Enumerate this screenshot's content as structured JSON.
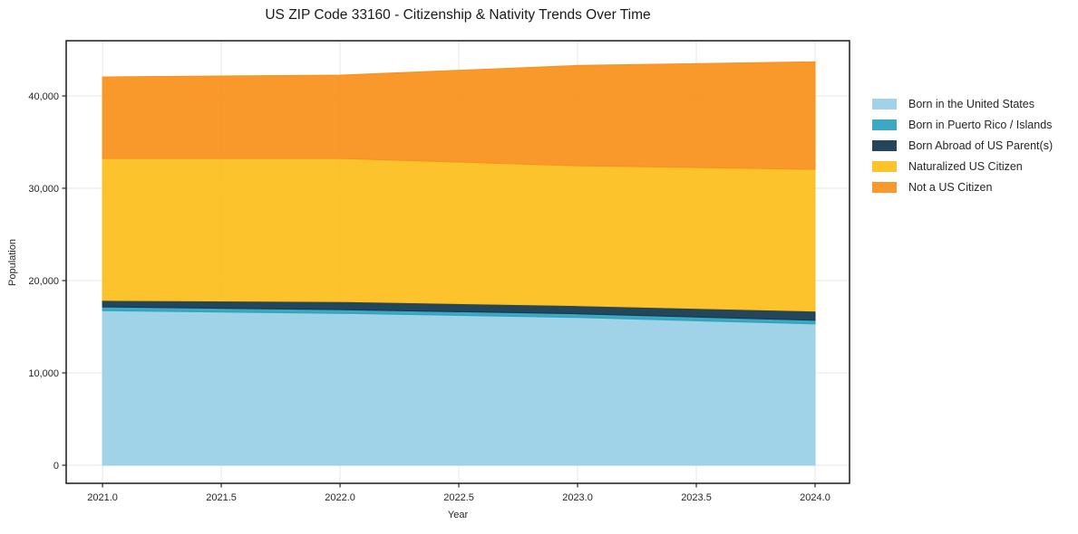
{
  "chart_data": {
    "type": "area",
    "stacked": true,
    "title": "US ZIP Code 33160 - Citizenship & Nativity Trends Over Time",
    "xlabel": "Year",
    "ylabel": "Population",
    "grid": true,
    "legend_position": "right",
    "x": [
      2021.0,
      2022.0,
      2023.0,
      2024.0
    ],
    "series": [
      {
        "name": "Born in the United States",
        "color": "#99CFE6",
        "values": [
          16750,
          16450,
          16000,
          15300
        ]
      },
      {
        "name": "Born in Puerto Rico / Islands",
        "color": "#2EA1BD",
        "values": [
          400,
          400,
          400,
          400
        ]
      },
      {
        "name": "Born Abroad of US Parent(s)",
        "color": "#12384D",
        "values": [
          700,
          880,
          880,
          1000
        ]
      },
      {
        "name": "Naturalized US Citizen",
        "color": "#FDBE1D",
        "values": [
          15380,
          15500,
          15160,
          15350
        ]
      },
      {
        "name": "Not a US Citizen",
        "color": "#F9911B",
        "values": [
          8830,
          9020,
          10860,
          11650
        ]
      }
    ],
    "stack_totals": [
      42060,
      42250,
      43300,
      43700
    ],
    "xlim": [
      2020.847,
      2024.145
    ],
    "ylim": [
      -1960,
      45980
    ],
    "x_tick_values": [
      2021.0,
      2021.5,
      2022.0,
      2022.5,
      2023.0,
      2023.5,
      2024.0
    ],
    "x_tick_labels": [
      "2021.0",
      "2021.5",
      "2022.0",
      "2022.5",
      "2023.0",
      "2023.5",
      "2024.0"
    ],
    "y_tick_values": [
      0,
      10000,
      20000,
      30000,
      40000
    ],
    "y_tick_labels": [
      "0",
      "10,000",
      "20,000",
      "30,000",
      "40,000"
    ]
  },
  "style_colors": {
    "grid": "#e7e7e7",
    "spine": "#1a1a1a",
    "tick_text": "#262626",
    "background": "#ffffff"
  }
}
